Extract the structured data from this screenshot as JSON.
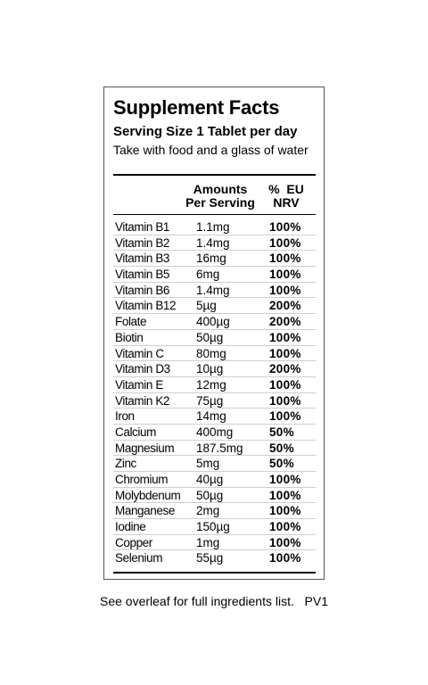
{
  "label": {
    "title": "Supplement Facts",
    "serving": "Serving Size 1 Tablet per day",
    "directions": "Take with food and a glass of water",
    "headers": {
      "amount_line1": "Amounts",
      "amount_line2": "Per Serving",
      "nrv_line1": "%  EU",
      "nrv_line2": "NRV"
    },
    "rows": [
      {
        "name": "Vitamin B1",
        "amount": "1.1mg",
        "nrv": "100%"
      },
      {
        "name": "Vitamin B2",
        "amount": "1.4mg",
        "nrv": "100%"
      },
      {
        "name": "Vitamin B3",
        "amount": "16mg",
        "nrv": "100%"
      },
      {
        "name": "Vitamin B5",
        "amount": "6mg",
        "nrv": "100%"
      },
      {
        "name": "Vitamin B6",
        "amount": "1.4mg",
        "nrv": "100%"
      },
      {
        "name": "Vitamin B12",
        "amount": "5µg",
        "nrv": "200%"
      },
      {
        "name": "Folate",
        "amount": "400µg",
        "nrv": "200%"
      },
      {
        "name": "Biotin",
        "amount": "50µg",
        "nrv": "100%"
      },
      {
        "name": "Vitamin C",
        "amount": "80mg",
        "nrv": "100%"
      },
      {
        "name": "Vitamin D3",
        "amount": "10µg",
        "nrv": "200%"
      },
      {
        "name": "Vitamin E",
        "amount": "12mg",
        "nrv": "100%"
      },
      {
        "name": "Vitamin K2",
        "amount": "75µg",
        "nrv": "100%"
      },
      {
        "name": "Iron",
        "amount": "14mg",
        "nrv": "100%"
      },
      {
        "name": "Calcium",
        "amount": "400mg",
        "nrv": "50%"
      },
      {
        "name": "Magnesium",
        "amount": "187.5mg",
        "nrv": "50%"
      },
      {
        "name": "Zinc",
        "amount": "5mg",
        "nrv": "50%"
      },
      {
        "name": "Chromium",
        "amount": "40µg",
        "nrv": "100%"
      },
      {
        "name": "Molybdenum",
        "amount": "50µg",
        "nrv": "100%"
      },
      {
        "name": "Manganese",
        "amount": "2mg",
        "nrv": "100%"
      },
      {
        "name": "Iodine",
        "amount": "150µg",
        "nrv": "100%"
      },
      {
        "name": "Copper",
        "amount": "1mg",
        "nrv": "100%"
      },
      {
        "name": "Selenium",
        "amount": "55µg",
        "nrv": "100%"
      }
    ]
  },
  "footnote": "See overleaf for full ingredients list.   PV1"
}
